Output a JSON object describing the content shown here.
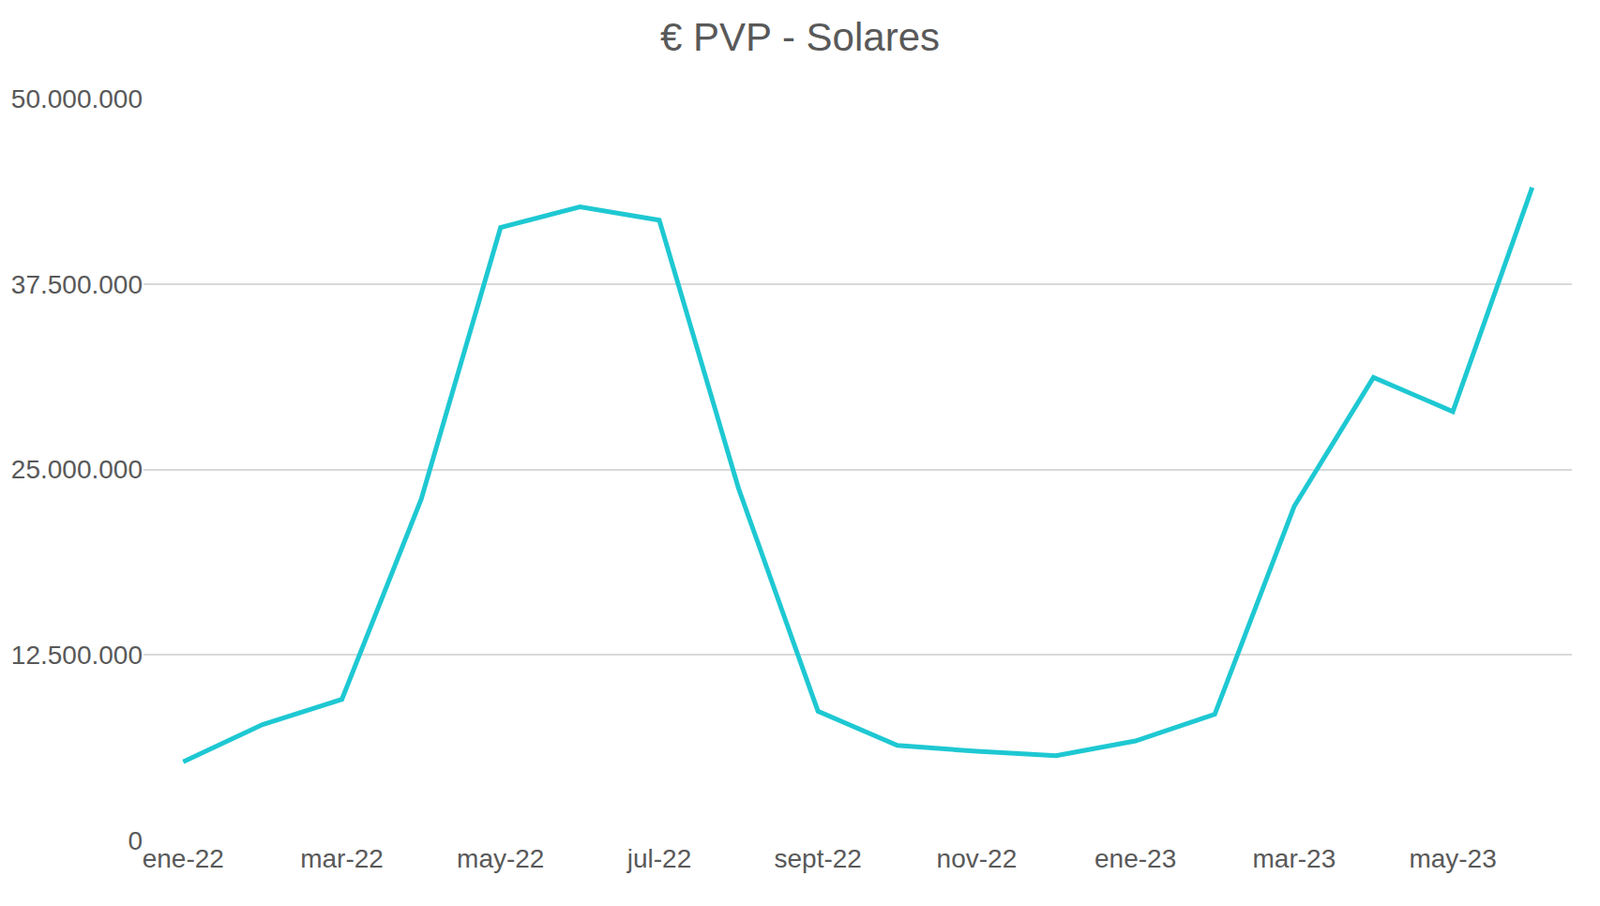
{
  "chart_data": {
    "type": "line",
    "title": "€ PVP - Solares",
    "categories": [
      "ene-22",
      null,
      "mar-22",
      null,
      "may-22",
      null,
      "jul-22",
      null,
      "sept-22",
      null,
      "nov-22",
      null,
      "ene-23",
      null,
      "mar-23",
      null,
      "may-23",
      null
    ],
    "values": [
      5300000,
      7800000,
      9500000,
      23000000,
      41300000,
      42700000,
      41800000,
      23700000,
      8700000,
      6400000,
      6000000,
      5700000,
      6700000,
      8500000,
      22500000,
      31200000,
      28900000,
      44000000
    ],
    "color": "#1ec8d2",
    "ylim": [
      0,
      50000000
    ],
    "yticks": [
      0,
      {
        "value": 12500000,
        "label": "12.500.000"
      },
      {
        "value": 25000000,
        "label": "25.000.000"
      },
      {
        "value": 37500000,
        "label": "37.500.000"
      },
      {
        "value": 50000000,
        "label": "50.000.000"
      }
    ],
    "grid": true
  }
}
